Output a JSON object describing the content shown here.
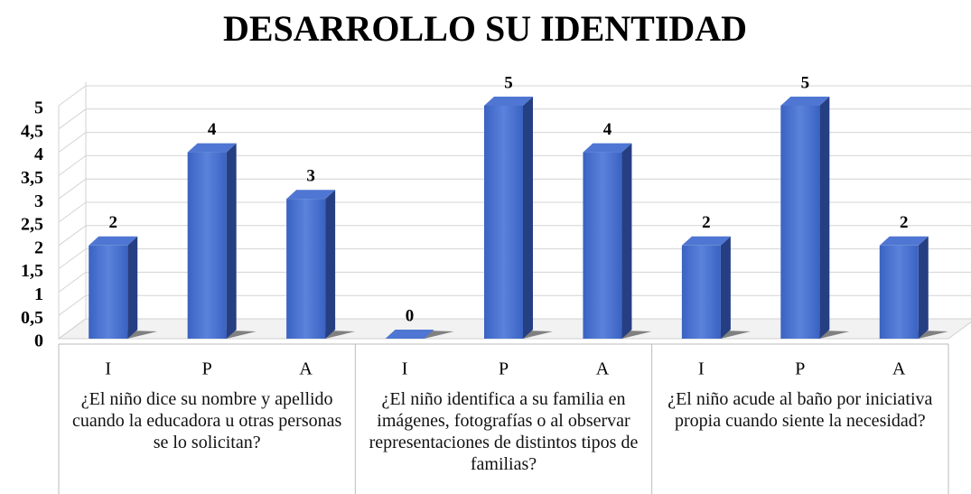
{
  "chart_data": {
    "type": "bar3d",
    "title": "DESARROLLO SU IDENTIDAD",
    "categories": [
      "I",
      "P",
      "A",
      "I",
      "P",
      "A",
      "I",
      "P",
      "A"
    ],
    "groups": [
      "¿El niño dice su nombre y apellido cuando la educadora u otras personas se lo solicitan?",
      "¿El niño identifica a su familia en imágenes, fotografías o al observar representaciones de distintos tipos de familias?",
      "¿El niño acude al baño por iniciativa propia cuando siente la necesidad?"
    ],
    "values": [
      2,
      4,
      3,
      0,
      5,
      4,
      2,
      5,
      2
    ],
    "color": "#3f66c6",
    "ylim": [
      0,
      5
    ],
    "yticks": [
      0,
      {
        "value": 0.5,
        "label": "0,5"
      },
      1,
      {
        "value": 1.5,
        "label": "1,5"
      },
      2,
      {
        "value": 2.5,
        "label": "2,5"
      },
      3,
      {
        "value": 3.5,
        "label": "3,5"
      },
      4,
      {
        "value": 4.5,
        "label": "4,5"
      },
      5
    ],
    "grid": true
  }
}
